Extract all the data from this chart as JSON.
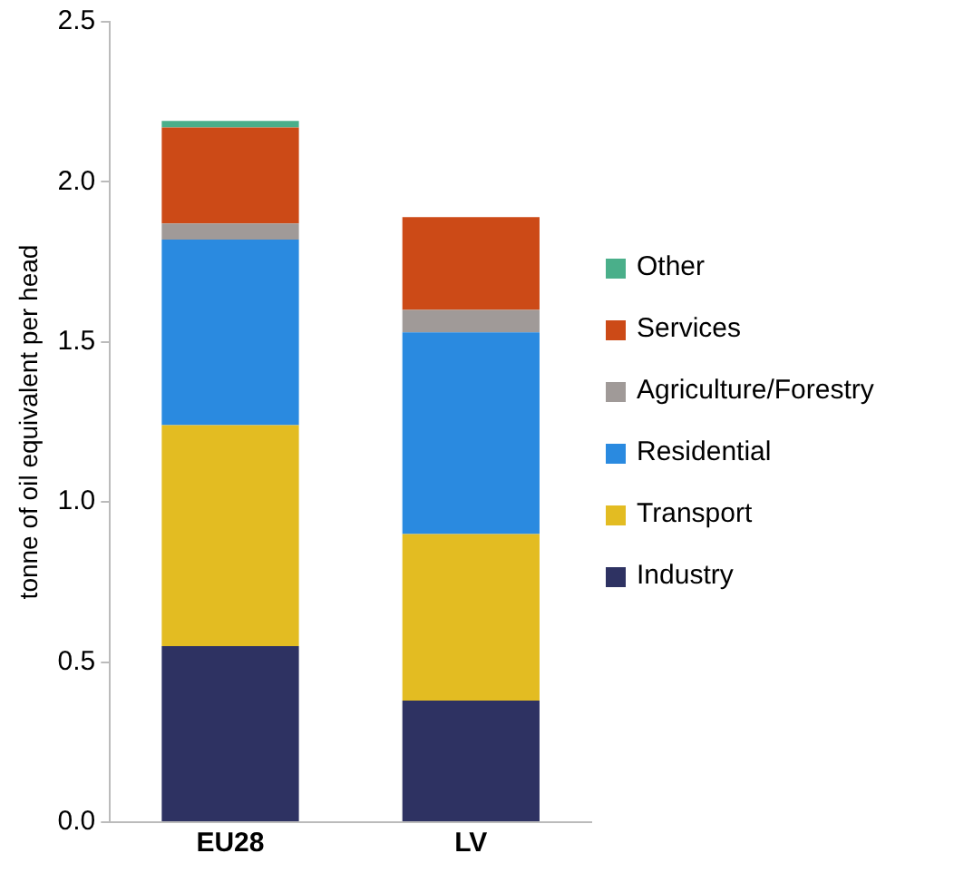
{
  "chart_data": {
    "type": "bar",
    "stacked": true,
    "ylabel": "tonne of oil equivalent per head",
    "categories": [
      "EU28",
      "LV"
    ],
    "series": [
      {
        "name": "Industry",
        "color": "#2e3262",
        "values": [
          0.55,
          0.38
        ]
      },
      {
        "name": "Transport",
        "color": "#e3bc22",
        "values": [
          0.69,
          0.52
        ]
      },
      {
        "name": "Residential",
        "color": "#2a8ae0",
        "values": [
          0.58,
          0.63
        ]
      },
      {
        "name": "Agriculture/Forestry",
        "color": "#a09a98",
        "values": [
          0.05,
          0.07
        ]
      },
      {
        "name": "Services",
        "color": "#cc4a17",
        "values": [
          0.3,
          0.29
        ]
      },
      {
        "name": "Other",
        "color": "#4aaf8a",
        "values": [
          0.02,
          0
        ]
      }
    ],
    "ylim": [
      0,
      2.5
    ],
    "yticks": [
      {
        "value": 0,
        "label": "0.0"
      },
      {
        "value": 0.5,
        "label": "0.5"
      },
      {
        "value": 1,
        "label": "1.0"
      },
      1.5,
      {
        "value": 2,
        "label": "2.0"
      },
      2.5
    ],
    "grid": false,
    "legend": "right"
  }
}
